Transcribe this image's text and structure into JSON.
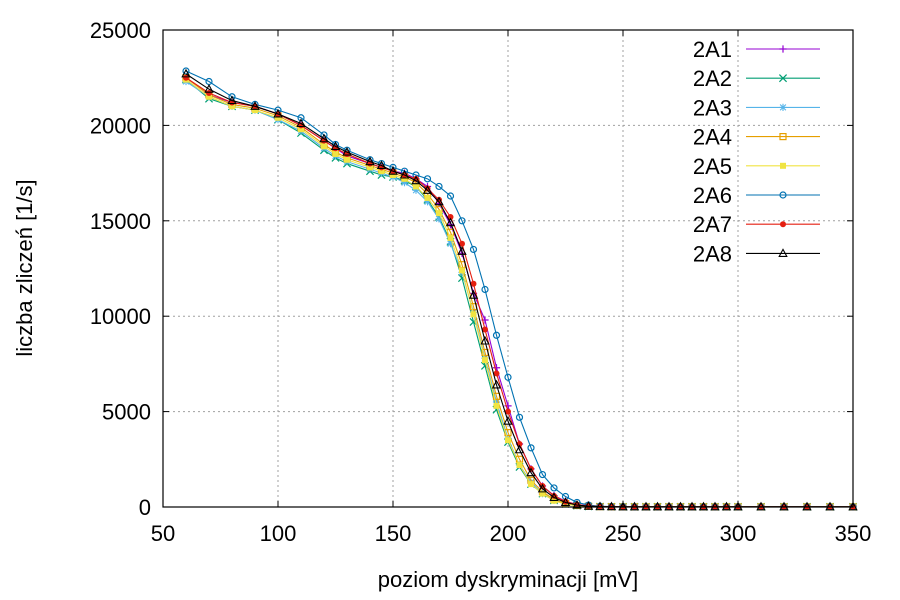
{
  "chart_data": {
    "type": "line",
    "xlabel": "poziom dyskryminacji [mV]",
    "ylabel": "liczba zliczeń [1/s]",
    "xlim": [
      50,
      350
    ],
    "ylim": [
      0,
      25000
    ],
    "xticks": [
      50,
      100,
      150,
      200,
      250,
      300,
      350
    ],
    "yticks": [
      0,
      5000,
      10000,
      15000,
      20000,
      25000
    ],
    "grid": true,
    "legend_position": "top-right",
    "x": [
      60,
      70,
      80,
      90,
      100,
      110,
      120,
      125,
      130,
      140,
      145,
      150,
      155,
      160,
      165,
      170,
      175,
      180,
      185,
      190,
      195,
      200,
      205,
      210,
      215,
      220,
      225,
      230,
      235,
      240,
      245,
      250,
      255,
      260,
      265,
      270,
      275,
      280,
      285,
      290,
      295,
      300,
      310,
      320,
      330,
      340,
      350
    ],
    "series": [
      {
        "name": "2A1",
        "color": "#9400d3",
        "marker": "plus",
        "values": [
          22500,
          21600,
          21200,
          21000,
          20600,
          20000,
          19200,
          18800,
          18400,
          18000,
          17800,
          17600,
          17500,
          17200,
          16800,
          15900,
          14800,
          13300,
          11200,
          9800,
          7300,
          5300,
          3300,
          2000,
          1100,
          600,
          300,
          130,
          60,
          30,
          20,
          15,
          10,
          10,
          10,
          10,
          10,
          10,
          10,
          10,
          10,
          10,
          10,
          10,
          10,
          10,
          10
        ]
      },
      {
        "name": "2A2",
        "color": "#009e73",
        "marker": "x",
        "values": [
          22400,
          21400,
          21000,
          20800,
          20300,
          19600,
          18700,
          18300,
          18000,
          17600,
          17400,
          17300,
          17100,
          16800,
          16100,
          15200,
          13900,
          12000,
          9700,
          7400,
          5100,
          3400,
          2100,
          1200,
          700,
          350,
          160,
          70,
          30,
          20,
          15,
          10,
          10,
          10,
          10,
          10,
          10,
          10,
          10,
          10,
          10,
          10,
          10,
          10,
          10,
          10,
          10
        ]
      },
      {
        "name": "2A3",
        "color": "#56b4e9",
        "marker": "asterisk",
        "values": [
          22300,
          21500,
          21000,
          20800,
          20300,
          19700,
          18800,
          18400,
          18100,
          17700,
          17500,
          17300,
          17000,
          16600,
          16000,
          15100,
          13800,
          12300,
          10200,
          7800,
          5500,
          3600,
          2200,
          1300,
          700,
          350,
          160,
          70,
          30,
          20,
          15,
          10,
          10,
          10,
          10,
          10,
          10,
          10,
          10,
          10,
          10,
          10,
          10,
          10,
          10,
          10,
          10
        ]
      },
      {
        "name": "2A4",
        "color": "#e69f00",
        "marker": "square-open",
        "values": [
          22500,
          21600,
          21100,
          20900,
          20500,
          19900,
          19000,
          18600,
          18300,
          17900,
          17700,
          17500,
          17300,
          17000,
          16400,
          15600,
          14400,
          12700,
          10500,
          8100,
          5800,
          3900,
          2500,
          1400,
          800,
          400,
          180,
          80,
          40,
          20,
          15,
          10,
          10,
          10,
          10,
          10,
          10,
          10,
          10,
          10,
          10,
          10,
          10,
          10,
          10,
          10,
          10
        ]
      },
      {
        "name": "2A5",
        "color": "#f0e442",
        "marker": "square-filled",
        "values": [
          22400,
          21500,
          21000,
          20800,
          20400,
          19800,
          18900,
          18500,
          18200,
          17800,
          17600,
          17400,
          17200,
          16800,
          16200,
          15400,
          14100,
          12400,
          10100,
          7700,
          5300,
          3500,
          2200,
          1200,
          700,
          330,
          150,
          60,
          30,
          20,
          15,
          10,
          10,
          10,
          10,
          10,
          10,
          10,
          10,
          10,
          10,
          10,
          10,
          10,
          10,
          10,
          10
        ]
      },
      {
        "name": "2A6",
        "color": "#0072b2",
        "marker": "circle-open",
        "values": [
          22850,
          22300,
          21500,
          21100,
          20800,
          20400,
          19500,
          19000,
          18700,
          18200,
          18000,
          17800,
          17600,
          17400,
          17200,
          16800,
          16300,
          15000,
          13500,
          11400,
          9000,
          6800,
          4700,
          3100,
          1700,
          1000,
          550,
          240,
          100,
          40,
          20,
          15,
          10,
          10,
          10,
          10,
          10,
          10,
          10,
          10,
          10,
          10,
          10,
          10,
          10,
          10,
          10
        ]
      },
      {
        "name": "2A7",
        "color": "#e51e10",
        "marker": "circle-filled",
        "values": [
          22500,
          21700,
          21200,
          21000,
          20600,
          20000,
          19200,
          18800,
          18500,
          18000,
          17800,
          17600,
          17400,
          17200,
          16700,
          16100,
          15200,
          13800,
          11700,
          9300,
          7000,
          5000,
          3300,
          2000,
          1100,
          580,
          280,
          120,
          50,
          25,
          15,
          10,
          10,
          10,
          10,
          10,
          10,
          10,
          10,
          10,
          10,
          10,
          10,
          10,
          10,
          10,
          10
        ]
      },
      {
        "name": "2A8",
        "color": "#000000",
        "marker": "triangle-open",
        "values": [
          22700,
          21900,
          21300,
          21000,
          20600,
          20100,
          19300,
          18900,
          18600,
          18100,
          17900,
          17600,
          17400,
          17100,
          16600,
          16000,
          14900,
          13400,
          11100,
          8700,
          6400,
          4500,
          3000,
          1800,
          950,
          500,
          240,
          100,
          45,
          20,
          15,
          10,
          10,
          10,
          10,
          10,
          10,
          10,
          10,
          10,
          10,
          10,
          10,
          10,
          10,
          10,
          10
        ]
      }
    ]
  }
}
